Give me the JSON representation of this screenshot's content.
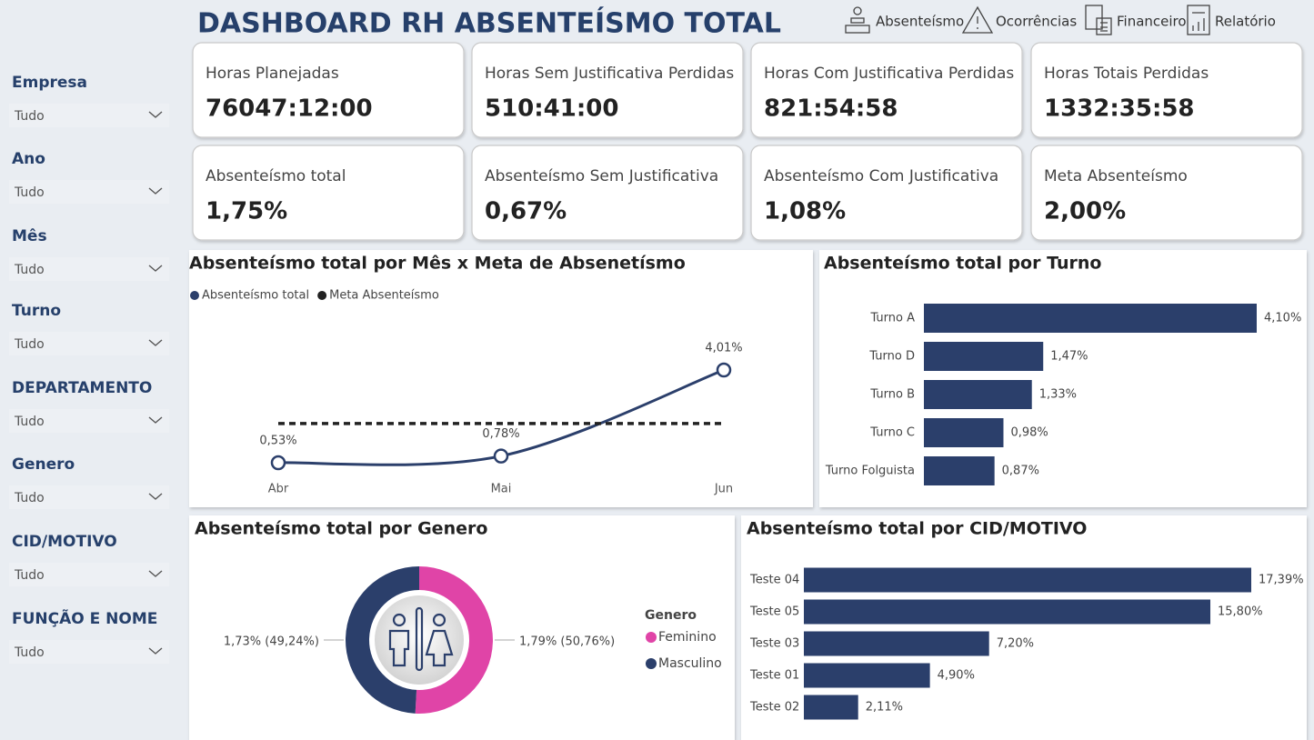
{
  "header": {
    "title": "DASHBOARD RH ABSENTEÍSMO TOTAL",
    "nav": [
      "Absenteísmo",
      "Ocorrências",
      "Financeiro",
      "Relatório"
    ]
  },
  "filters": [
    {
      "label": "Empresa",
      "value": "Tudo"
    },
    {
      "label": "Ano",
      "value": "Tudo"
    },
    {
      "label": "Mês",
      "value": "Tudo"
    },
    {
      "label": "Turno",
      "value": "Tudo"
    },
    {
      "label": "DEPARTAMENTO",
      "value": "Tudo"
    },
    {
      "label": "Genero",
      "value": "Tudo"
    },
    {
      "label": "CID/MOTIVO",
      "value": "Tudo"
    },
    {
      "label": "FUNÇÃO E NOME",
      "value": "Tudo"
    }
  ],
  "kpis": [
    {
      "label": "Horas Planejadas",
      "value": "76047:12:00"
    },
    {
      "label": "Horas Sem Justificativa Perdidas",
      "value": "510:41:00"
    },
    {
      "label": "Horas Com Justificativa Perdidas",
      "value": "821:54:58"
    },
    {
      "label": "Horas Totais Perdidas",
      "value": "1332:35:58"
    },
    {
      "label": "Absenteísmo total",
      "value": "1,75%"
    },
    {
      "label": "Absenteísmo Sem Justificativa",
      "value": "0,67%"
    },
    {
      "label": "Absenteísmo Com Justificativa",
      "value": "1,08%"
    },
    {
      "label": "Meta Absenteísmo",
      "value": "2,00%"
    }
  ],
  "chart_data": [
    {
      "type": "line",
      "title": "Absenteísmo total por Mês x Meta de Absenetísmo",
      "categories": [
        "Abr",
        "Mai",
        "Jun"
      ],
      "series": [
        {
          "name": "Absenteísmo total",
          "color": "#2b3f6b",
          "values": [
            0.53,
            0.78,
            4.01
          ],
          "value_labels": [
            "0,53%",
            "0,78%",
            "4,01%"
          ]
        },
        {
          "name": "Meta Absenteísmo",
          "color": "#222222",
          "values": [
            2.0,
            2.0,
            2.0
          ],
          "dashed": true
        }
      ]
    },
    {
      "type": "bar",
      "orientation": "horizontal",
      "title": "Absenteísmo total por Turno",
      "color": "#2b3f6b",
      "categories": [
        "Turno A",
        "Turno D",
        "Turno B",
        "Turno C",
        "Turno Folguista"
      ],
      "values": [
        4.1,
        1.47,
        1.33,
        0.98,
        0.87
      ],
      "value_labels": [
        "4,10%",
        "1,47%",
        "1,33%",
        "0,98%",
        "0,87%"
      ]
    },
    {
      "type": "donut",
      "title": "Absenteísmo total por Genero",
      "legend_title": "Genero",
      "categories": [
        "Feminino",
        "Masculino"
      ],
      "colors": [
        "#e044a7",
        "#2b3f6b"
      ],
      "values": [
        1.79,
        1.73
      ],
      "value_labels": [
        "1,79% (50,76%)",
        "1,73% (49,24%)"
      ]
    },
    {
      "type": "bar",
      "orientation": "horizontal",
      "title": "Absenteísmo total por CID/MOTIVO",
      "color": "#2b3f6b",
      "categories": [
        "Teste 04",
        "Teste 05",
        "Teste 03",
        "Teste 01",
        "Teste 02"
      ],
      "values": [
        17.39,
        15.8,
        7.2,
        4.9,
        2.11
      ],
      "value_labels": [
        "17,39%",
        "15,80%",
        "7,20%",
        "4,90%",
        "2,11%"
      ]
    }
  ]
}
